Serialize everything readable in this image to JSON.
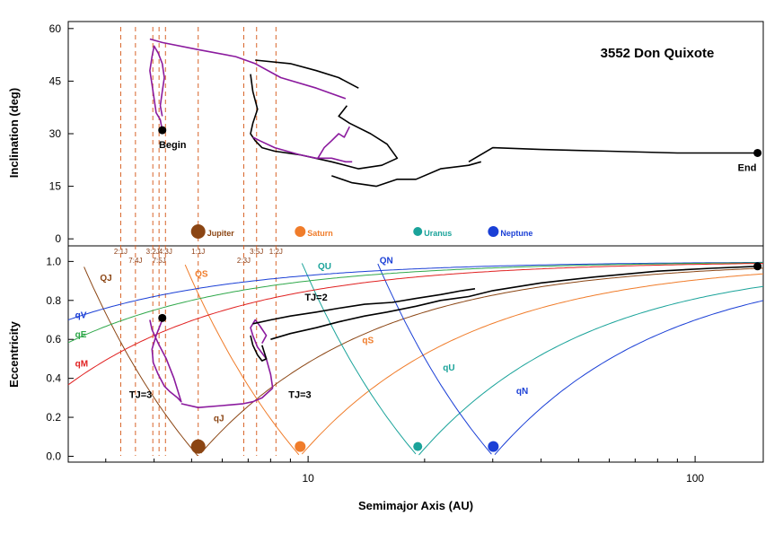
{
  "chart_data": [
    {
      "type": "line",
      "panel": "inclination",
      "title": "3552 Don Quixote",
      "xlabel": "",
      "ylabel": "Inclination  (deg)",
      "xscale": "log",
      "xlim": [
        2.4,
        150
      ],
      "ylim": [
        -2,
        62
      ],
      "yticks": [
        0,
        15,
        30,
        45,
        60
      ],
      "resonances": [
        {
          "a": 3.28,
          "label": "2:1J"
        },
        {
          "a": 3.58,
          "label": "7:4J"
        },
        {
          "a": 3.97,
          "label": "3:2J"
        },
        {
          "a": 4.12,
          "label": "7:5J"
        },
        {
          "a": 4.28,
          "label": "4:3J"
        },
        {
          "a": 5.2,
          "label": "1:1J"
        },
        {
          "a": 6.82,
          "label": "2:3J"
        },
        {
          "a": 7.36,
          "label": "3:5J"
        },
        {
          "a": 8.26,
          "label": "1:2J"
        }
      ],
      "planets": [
        {
          "name": "Jupiter",
          "a": 5.2,
          "color": "#8b4513"
        },
        {
          "name": "Saturn",
          "a": 9.54,
          "color": "#f07c2a"
        },
        {
          "name": "Uranus",
          "a": 19.2,
          "color": "#1aa39a"
        },
        {
          "name": "Neptune",
          "a": 30.1,
          "color": "#1a3fd6"
        }
      ],
      "series": [
        {
          "color": "#8b1a9e",
          "x": [
            4.2,
            4.15,
            4.05,
            4.0,
            3.95,
            3.9,
            3.95,
            4.0,
            4.1,
            4.2,
            4.25,
            4.2,
            4.15,
            4.2
          ],
          "y": [
            31,
            34,
            36,
            40,
            44,
            48,
            52,
            55,
            53,
            50,
            46,
            42,
            38,
            35
          ]
        },
        {
          "color": "#8b1a9e",
          "x": [
            3.9,
            4.2,
            5.2,
            6.5,
            7.3,
            8.5,
            10.5,
            12.5
          ],
          "y": [
            57,
            56,
            54,
            52,
            50,
            46,
            43,
            40
          ]
        },
        {
          "color": "#000000",
          "x": [
            7.3,
            9.0,
            10.5,
            12.0,
            13.5
          ],
          "y": [
            51,
            50,
            48,
            46,
            43
          ]
        },
        {
          "color": "#000000",
          "x": [
            7.1,
            7.2,
            7.4,
            7.2,
            7.1,
            7.3,
            7.6,
            8.2,
            9.5,
            11.5,
            13.5,
            15.5,
            17.0,
            16.0,
            14.5,
            12.8,
            12.0,
            12.6
          ],
          "y": [
            47,
            42,
            37,
            33,
            30,
            28,
            26,
            25,
            24,
            22,
            20,
            21,
            23,
            27,
            30,
            33,
            35,
            38
          ]
        },
        {
          "color": "#000000",
          "x": [
            11.5,
            13.0,
            15.0,
            17.0,
            19.0,
            22.0,
            26.0,
            28.0
          ],
          "y": [
            18,
            16,
            15,
            17,
            17,
            20,
            21,
            22
          ]
        },
        {
          "color": "#8b1a9e",
          "x": [
            7.2,
            7.5,
            8.2,
            9.5,
            10.5,
            11.5,
            12.5,
            13.0
          ],
          "y": [
            29,
            28,
            26,
            24,
            23,
            23,
            22,
            22
          ]
        },
        {
          "color": "#8b1a9e",
          "x": [
            10.6,
            11.0,
            11.5,
            12.0,
            12.4,
            12.8
          ],
          "y": [
            23,
            26,
            28,
            30,
            29,
            32
          ]
        },
        {
          "color": "#000000",
          "x": [
            26,
            30,
            40,
            60,
            90,
            120,
            145
          ],
          "y": [
            22,
            26,
            25.5,
            25,
            24.5,
            24.5,
            24.5
          ]
        }
      ],
      "annotations": [
        {
          "text": "Begin",
          "x": 4.25,
          "y": 31
        },
        {
          "text": "End",
          "x": 145,
          "y": 24.5
        }
      ]
    },
    {
      "type": "line",
      "panel": "eccentricity",
      "xlabel": "Semimajor Axis  (AU)",
      "ylabel": "Eccentricity",
      "xscale": "log",
      "xlim": [
        2.4,
        150
      ],
      "ylim": [
        -0.03,
        1.08
      ],
      "yticks": [
        0.0,
        0.2,
        0.4,
        0.6,
        0.8,
        1.0
      ],
      "xticks": [
        10,
        100
      ],
      "curves": [
        {
          "label": "QJ",
          "planet_a": 5.2,
          "kind": "Q",
          "color": "#8b4513"
        },
        {
          "label": "qJ",
          "planet_a": 5.2,
          "kind": "q",
          "color": "#8b4513"
        },
        {
          "label": "QS",
          "planet_a": 9.54,
          "kind": "Q",
          "color": "#f07c2a"
        },
        {
          "label": "qS",
          "planet_a": 9.54,
          "kind": "q",
          "color": "#f07c2a"
        },
        {
          "label": "QU",
          "planet_a": 19.2,
          "kind": "Q",
          "color": "#1aa39a"
        },
        {
          "label": "qU",
          "planet_a": 19.2,
          "kind": "q",
          "color": "#1aa39a"
        },
        {
          "label": "QN",
          "planet_a": 30.1,
          "kind": "Q",
          "color": "#1a3fd6"
        },
        {
          "label": "qN",
          "planet_a": 30.1,
          "kind": "q",
          "color": "#1a3fd6"
        },
        {
          "label": "qV",
          "planet_a": 0.72,
          "kind": "q",
          "color": "#1a3fd6"
        },
        {
          "label": "qE",
          "planet_a": 1.0,
          "kind": "q",
          "color": "#2fa84a"
        },
        {
          "label": "qM",
          "planet_a": 1.52,
          "kind": "q",
          "color": "#e02020"
        }
      ],
      "series": [
        {
          "color": "#8b1a9e",
          "x": [
            4.2,
            4.05,
            3.95,
            3.98,
            4.1,
            4.25,
            4.4,
            4.6,
            4.7,
            4.5,
            4.3,
            4.1,
            3.95,
            3.9
          ],
          "y": [
            0.7,
            0.62,
            0.55,
            0.48,
            0.42,
            0.36,
            0.33,
            0.3,
            0.28,
            0.4,
            0.5,
            0.58,
            0.65,
            0.7
          ]
        },
        {
          "color": "#8b1a9e",
          "x": [
            4.7,
            5.2,
            6.0,
            6.8,
            7.2,
            7.6,
            8.1
          ],
          "y": [
            0.27,
            0.25,
            0.26,
            0.27,
            0.28,
            0.3,
            0.35
          ]
        },
        {
          "color": "#8b1a9e",
          "x": [
            8.1,
            8.0,
            7.8,
            7.4,
            7.2,
            7.1,
            7.3,
            7.5,
            7.8,
            7.6
          ],
          "y": [
            0.35,
            0.42,
            0.5,
            0.56,
            0.62,
            0.66,
            0.7,
            0.67,
            0.62,
            0.58
          ]
        },
        {
          "color": "#000000",
          "x": [
            7.1,
            7.2,
            7.4,
            7.6,
            7.8,
            7.6
          ],
          "y": [
            0.62,
            0.57,
            0.52,
            0.49,
            0.5,
            0.57
          ]
        },
        {
          "color": "#000000",
          "x": [
            7.2,
            8.0,
            9.0,
            10.5,
            12.0,
            14.0,
            16.5,
            19.0,
            22.0,
            25.0,
            27.0
          ],
          "y": [
            0.68,
            0.7,
            0.72,
            0.74,
            0.76,
            0.78,
            0.79,
            0.81,
            0.83,
            0.85,
            0.86
          ]
        },
        {
          "color": "#000000",
          "x": [
            8.0,
            9.0,
            10.5,
            12.0,
            14.0,
            16.0,
            19.0,
            22.0,
            26.0
          ],
          "y": [
            0.6,
            0.63,
            0.66,
            0.69,
            0.72,
            0.74,
            0.77,
            0.8,
            0.82
          ]
        },
        {
          "color": "#000000",
          "x": [
            26,
            30,
            40,
            55,
            80,
            110,
            145
          ],
          "y": [
            0.82,
            0.85,
            0.89,
            0.92,
            0.95,
            0.965,
            0.975
          ]
        }
      ],
      "annotations": [
        {
          "text": "TJ=2",
          "x": 9.8,
          "y": 0.8
        },
        {
          "text": "TJ=3",
          "x": 3.45,
          "y": 0.3
        },
        {
          "text": "TJ=3",
          "x": 8.9,
          "y": 0.3
        }
      ]
    }
  ]
}
